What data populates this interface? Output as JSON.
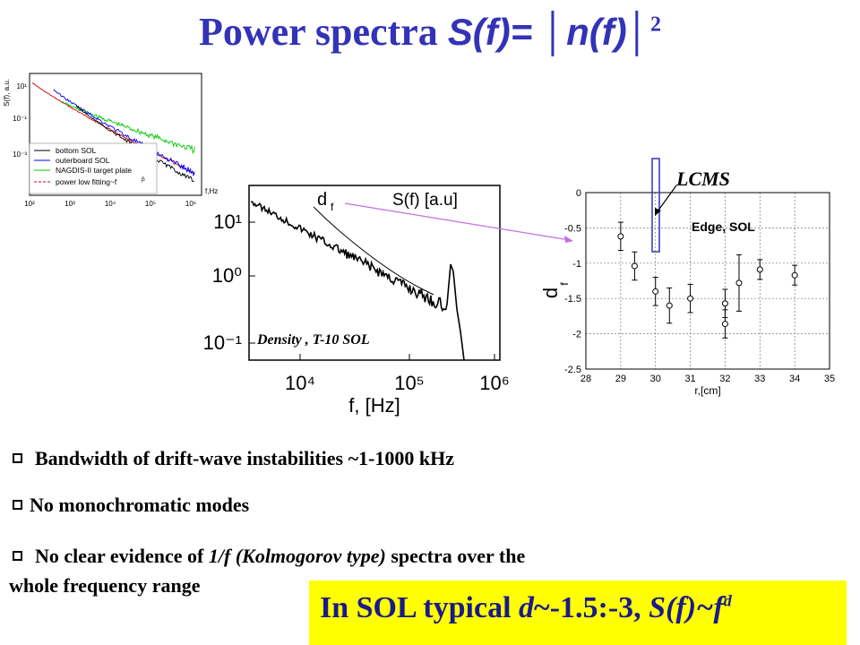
{
  "title": {
    "text": "Power spectra ",
    "formula": "S(f)= │n(f)│",
    "exp": "2"
  },
  "chart_data": [
    {
      "type": "line",
      "title": "",
      "xlabel": "f,Hz",
      "ylabel": "S(f), a.u.",
      "log_x": true,
      "log_y": true,
      "x_ticks": [
        "10²",
        "10³",
        "10⁴",
        "10⁵",
        "10⁶"
      ],
      "y_ticks": [
        "10¹",
        "10⁻¹",
        "10⁻³"
      ],
      "legend_position": "bottom-left",
      "series": [
        {
          "name": "bottom SOL",
          "color": "#000000"
        },
        {
          "name": "outerboard SOL",
          "color": "#0000ff"
        },
        {
          "name": "NAGDIS-II target plate",
          "color": "#00c800"
        },
        {
          "name": "power low fitting~f",
          "color": "#d00000"
        }
      ],
      "legend_exponent": "β"
    },
    {
      "type": "line",
      "xlabel": "f, [Hz]",
      "ylabel": "",
      "log_x": true,
      "log_y": true,
      "x_ticks": [
        "10⁴",
        "10⁵",
        "10⁶"
      ],
      "y_ticks": [
        "10¹",
        "10⁰",
        "10⁻¹"
      ],
      "legend": [
        "d",
        "S(f) [a.u]"
      ],
      "legend_sub": "f",
      "annotation": "Density , T-10 SOL"
    },
    {
      "type": "scatter",
      "xlabel": "r,[cm]",
      "ylabel": "d",
      "ylabel_sub": "f",
      "xlim": [
        28,
        35
      ],
      "ylim": [
        -2.5,
        0
      ],
      "x_ticks": [
        28,
        29,
        30,
        31,
        32,
        33,
        34,
        35
      ],
      "y_ticks": [
        0,
        -0.5,
        -1,
        -1.5,
        -2,
        -2.5
      ],
      "grid": true,
      "annotation": "Edge, SOL",
      "marker_label": "LCMS",
      "points": [
        {
          "x": 29.0,
          "y": -0.62,
          "err": 0.2
        },
        {
          "x": 29.4,
          "y": -1.04,
          "err": 0.2
        },
        {
          "x": 30.0,
          "y": -1.4,
          "err": 0.2
        },
        {
          "x": 30.4,
          "y": -1.6,
          "err": 0.25
        },
        {
          "x": 31.0,
          "y": -1.5,
          "err": 0.2
        },
        {
          "x": 32.0,
          "y": -1.57,
          "err": 0.2
        },
        {
          "x": 32.0,
          "y": -1.86,
          "err": 0.2
        },
        {
          "x": 32.4,
          "y": -1.28,
          "err": 0.4
        },
        {
          "x": 33.0,
          "y": -1.09,
          "err": 0.14
        },
        {
          "x": 34.0,
          "y": -1.17,
          "err": 0.14
        }
      ]
    }
  ],
  "bullets": [
    {
      "text": "Bandwidth of drift-wave instabilities ~1-1000 kHz"
    },
    {
      "text": "No monochromatic  modes"
    },
    {
      "pre": "No clear evidence of ",
      "em": "1/f (Kolmogorov type)",
      "post": " spectra over the",
      "line2": "whole frequency range"
    }
  ],
  "summary": {
    "pre": "In SOL typical ",
    "d": "d",
    "mid": "~-1.5:-3, ",
    "sf": "S(f)~f",
    "exp": "d"
  }
}
